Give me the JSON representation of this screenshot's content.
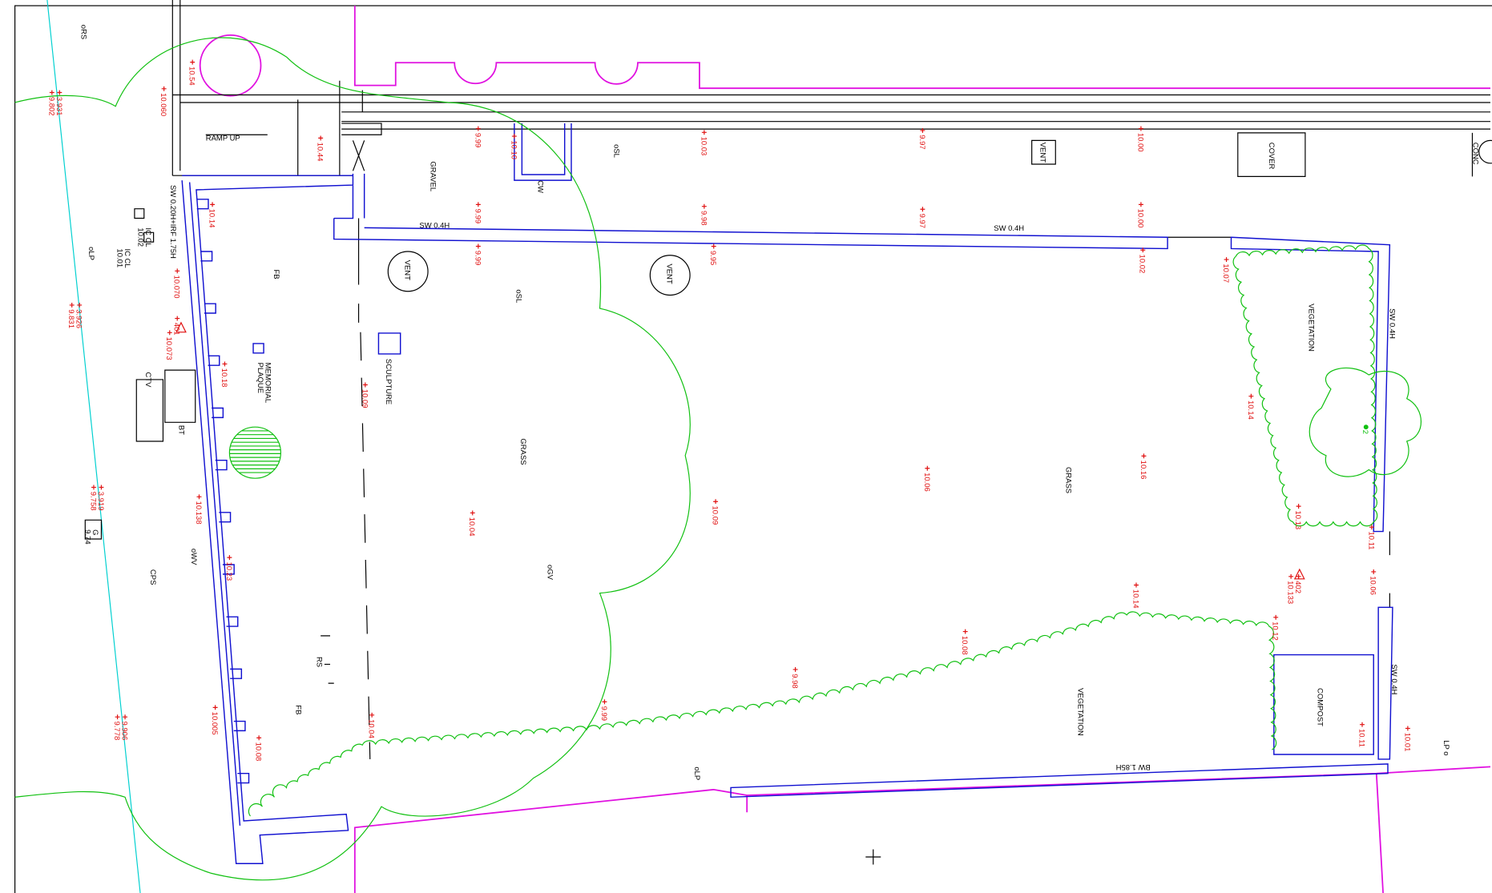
{
  "elevations": [
    "10.54",
    "10.060",
    "3.931",
    "9.802",
    "10.44",
    "9.99",
    "10.10",
    "10.03",
    "9.97",
    "10.00",
    "10.14",
    "9.99",
    "9.98",
    "9.97",
    "10.00",
    "9.99",
    "9.95",
    "10.02",
    "10.07",
    "10.070",
    "3.926",
    "9.831",
    "401",
    "10.073",
    "10.18",
    "10.09",
    "10.14",
    "10.06",
    "10.16",
    "10.09",
    "10.04",
    "10.13",
    "10.138",
    "3.919",
    "9.758",
    "10.11",
    "10.23",
    "402",
    "10.133",
    "10.06",
    "10.14",
    "10.12",
    "10.08",
    "9.98",
    "9.99",
    "10.005",
    "10.04",
    "10.08",
    "9.906",
    "9.778",
    "10.11",
    "10.01"
  ],
  "labels": [
    "oRS",
    "RAMP UP",
    "GRAVEL",
    "CW",
    "oSL",
    "VENT",
    "COVER",
    "CONC",
    "SW 0.4H",
    "SW 0.4H",
    "SW 0.20H+IRF 1.75H",
    "IC CL",
    "10.02",
    "IC CL",
    "10.01",
    "oLP",
    "VENT",
    "VENT",
    "FB",
    "oSL",
    "VEGETATION",
    "SW 0.4H",
    "MEMORIAL",
    "PLAQUE",
    "SCULPTURE",
    "CTV",
    "BT",
    "GRASS",
    "GRASS",
    "2",
    "G",
    "9.74",
    "oWV",
    "oGV",
    "CPS",
    "RS",
    "SW 0.4H",
    "COMPOST",
    "VEGETATION",
    "FB",
    "oLP",
    "LP o",
    "BW 1.85H"
  ]
}
